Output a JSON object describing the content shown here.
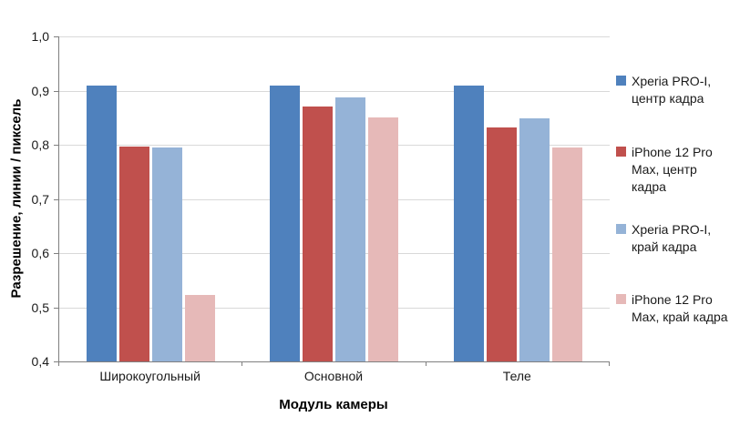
{
  "chart_data": {
    "type": "bar",
    "title": "",
    "xlabel": "Модуль камеры",
    "ylabel": "Разрешение, линии / пиксель",
    "ylim": [
      0.4,
      1.0
    ],
    "yticks": [
      "1,0",
      "0,9",
      "0,8",
      "0,7",
      "0,6",
      "0,5",
      "0,4"
    ],
    "grid": true,
    "legend_position": "right",
    "categories": [
      "Широкоугольный",
      "Основной",
      "Теле"
    ],
    "series": [
      {
        "name": "Xperia PRO-I, центр кадра",
        "color": "#4F81BD",
        "values": [
          0.91,
          0.91,
          0.91
        ]
      },
      {
        "name": "iPhone 12 Pro Max, центр кадра",
        "color": "#C0504D",
        "values": [
          0.797,
          0.87,
          0.832
        ]
      },
      {
        "name": "Xperia PRO-I, край кадра",
        "color": "#95B3D7",
        "values": [
          0.795,
          0.888,
          0.848
        ]
      },
      {
        "name": "iPhone 12 Pro Max, край кадра",
        "color": "#E6B9B8",
        "values": [
          0.523,
          0.85,
          0.795
        ]
      }
    ]
  }
}
